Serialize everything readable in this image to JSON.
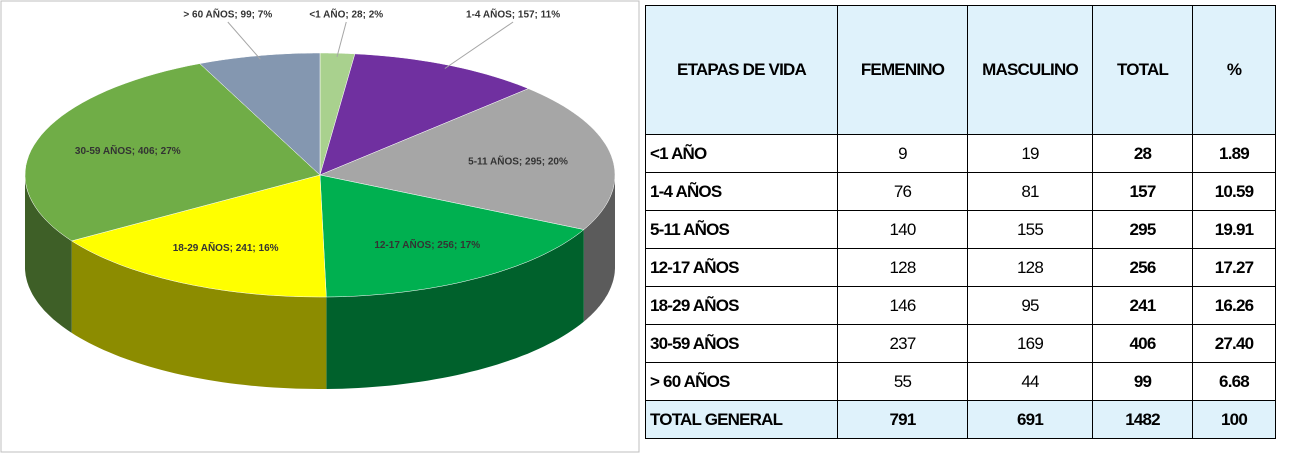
{
  "chart_data": {
    "type": "pie",
    "categories": [
      "<1 AÑO",
      "1-4 AÑOS",
      "5-11 AÑOS",
      "12-17 AÑOS",
      "18-29 AÑOS",
      "30-59 AÑOS",
      "> 60 AÑOS"
    ],
    "values": [
      28,
      157,
      295,
      256,
      241,
      406,
      99
    ],
    "value_labels": [
      "<1 AÑO; 28; 2%",
      "1-4 AÑOS; 157; 11%",
      "5-11 AÑOS; 295; 20%",
      "12-17 AÑOS; 256; 17%",
      "18-29 AÑOS; 241; 16%",
      "30-59 AÑOS; 406; 27%",
      "> 60 AÑOS; 99; 7%"
    ],
    "colors": [
      "#a9d18e",
      "#7030a0",
      "#a6a6a6",
      "#00b050",
      "#ffff00",
      "#70ad47",
      "#8497b0"
    ]
  },
  "table": {
    "header": [
      "ETAPAS DE VIDA",
      "FEMENINO",
      "MASCULINO",
      "TOTAL",
      "%"
    ],
    "rows": [
      [
        "<1 AÑO",
        "9",
        "19",
        "28",
        "1.89"
      ],
      [
        "1-4 AÑOS",
        "76",
        "81",
        "157",
        "10.59"
      ],
      [
        "5-11 AÑOS",
        "140",
        "155",
        "295",
        "19.91"
      ],
      [
        "12-17 AÑOS",
        "128",
        "128",
        "256",
        "17.27"
      ],
      [
        "18-29 AÑOS",
        "146",
        "95",
        "241",
        "16.26"
      ],
      [
        "30-59 AÑOS",
        "237",
        "169",
        "406",
        "27.40"
      ],
      [
        "> 60 AÑOS",
        "55",
        "44",
        "99",
        "6.68"
      ]
    ],
    "total": [
      "TOTAL GENERAL",
      "791",
      "691",
      "1482",
      "100"
    ]
  }
}
